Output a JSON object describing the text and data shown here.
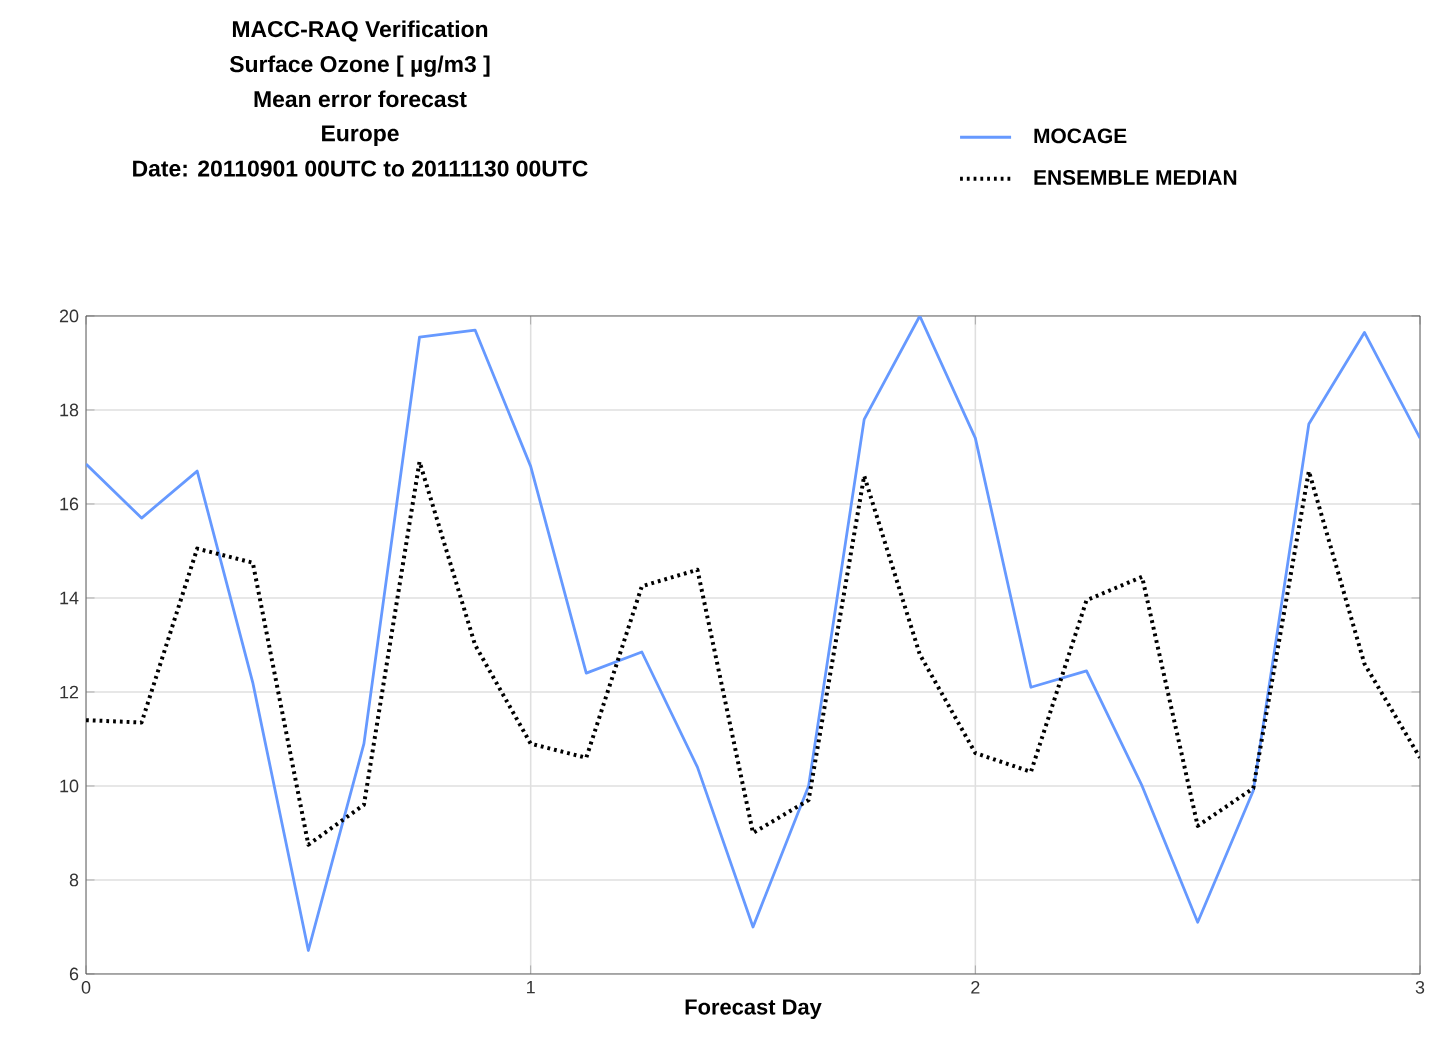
{
  "chart_data": {
    "type": "line",
    "title": "MACC-RAQ Verification",
    "subtitle": "Surface Ozone [ µg/m3 ]",
    "annotations": [
      "Mean error forecast",
      "Europe",
      "Date: 20110901 00UTC to 20111130 00UTC"
    ],
    "xlabel": "Forecast Day",
    "x": [
      0,
      0.125,
      0.25,
      0.375,
      0.5,
      0.625,
      0.75,
      0.875,
      1,
      1.125,
      1.25,
      1.375,
      1.5,
      1.625,
      1.75,
      1.875,
      2,
      2.125,
      2.25,
      2.375,
      2.5,
      2.625,
      2.75,
      2.875,
      3
    ],
    "series": [
      {
        "name": "MOCAGE",
        "color": "#6699ff",
        "line_style": "solid",
        "values": [
          16.85,
          15.7,
          16.7,
          12.2,
          6.5,
          10.9,
          19.55,
          19.7,
          16.8,
          12.4,
          12.85,
          10.4,
          7.0,
          10.0,
          17.8,
          20.0,
          17.4,
          12.1,
          12.45,
          10.0,
          7.1,
          9.9,
          17.7,
          19.65,
          17.4
        ]
      },
      {
        "name": "ENSEMBLE MEDIAN",
        "color": "#000000",
        "line_style": "dotted",
        "values": [
          11.4,
          11.35,
          15.05,
          14.75,
          8.75,
          9.6,
          16.9,
          13.0,
          10.9,
          10.6,
          14.25,
          14.6,
          9.0,
          9.7,
          16.6,
          12.8,
          10.7,
          10.3,
          13.95,
          14.45,
          9.15,
          9.95,
          16.7,
          12.6,
          10.6
        ]
      }
    ],
    "xlim": [
      0,
      3
    ],
    "xticks": [
      0,
      1,
      2,
      3
    ],
    "ylim": [
      6,
      20
    ],
    "yticks": [
      6,
      8,
      10,
      12,
      14,
      16,
      18,
      20
    ],
    "grid": true,
    "legend": "top right",
    "marker": "none"
  }
}
